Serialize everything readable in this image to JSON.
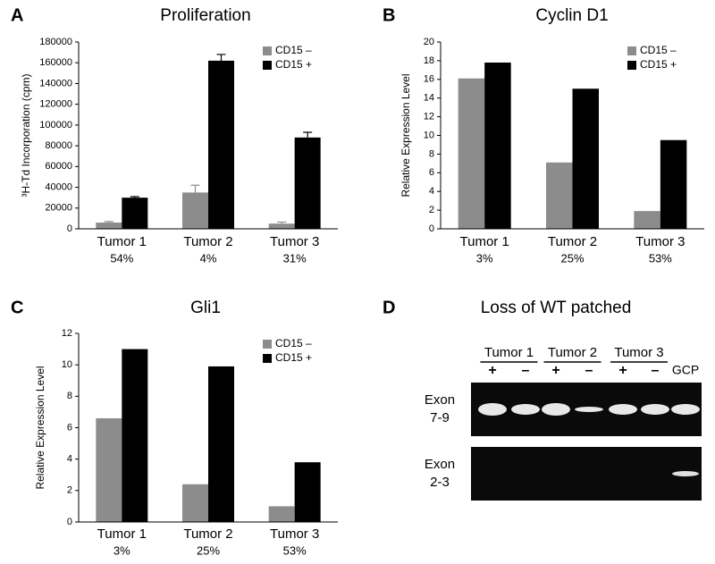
{
  "chart_data": [
    {
      "type": "bar",
      "label": "A",
      "title": "Proliferation",
      "y_label": "³H-Td Incorporation (cpm)",
      "categories": [
        "Tumor 1",
        "Tumor 2",
        "Tumor 3"
      ],
      "x_sublabels": [
        "54%",
        "4%",
        "31%"
      ],
      "series": [
        {
          "name": "CD15 –",
          "color": "#8c8c8c",
          "values": [
            6000,
            35000,
            5000
          ],
          "errors": [
            1000,
            7000,
            1500
          ]
        },
        {
          "name": "CD15 +",
          "color": "#000000",
          "values": [
            30000,
            162000,
            88000
          ],
          "errors": [
            1000,
            6000,
            5000
          ]
        }
      ],
      "ylim": [
        0,
        180000
      ],
      "yticks": [
        0,
        20000,
        40000,
        60000,
        80000,
        100000,
        120000,
        140000,
        160000,
        180000
      ],
      "legend": "upper right"
    },
    {
      "type": "bar",
      "label": "B",
      "title": "Cyclin D1",
      "y_label": "Relative Expression Level",
      "categories": [
        "Tumor 1",
        "Tumor 2",
        "Tumor 3"
      ],
      "x_sublabels": [
        "3%",
        "25%",
        "53%"
      ],
      "series": [
        {
          "name": "CD15 –",
          "color": "#8c8c8c",
          "values": [
            16.1,
            7.1,
            1.9
          ]
        },
        {
          "name": "CD15 +",
          "color": "#000000",
          "values": [
            17.8,
            15.0,
            9.5
          ]
        }
      ],
      "ylim": [
        0,
        20
      ],
      "yticks": [
        0,
        2,
        4,
        6,
        8,
        10,
        12,
        14,
        16,
        18,
        20
      ],
      "legend": "upper right"
    },
    {
      "type": "bar",
      "label": "C",
      "title": "Gli1",
      "y_label": "Relative Expression Level",
      "categories": [
        "Tumor 1",
        "Tumor 2",
        "Tumor 3"
      ],
      "x_sublabels": [
        "3%",
        "25%",
        "53%"
      ],
      "series": [
        {
          "name": "CD15 –",
          "color": "#8c8c8c",
          "values": [
            6.6,
            2.4,
            1.0
          ]
        },
        {
          "name": "CD15 +",
          "color": "#000000",
          "values": [
            11.0,
            9.9,
            3.8
          ]
        }
      ],
      "ylim": [
        0,
        12
      ],
      "yticks": [
        0,
        2,
        4,
        6,
        8,
        10,
        12
      ],
      "legend": "upper right"
    }
  ],
  "gel": {
    "label": "D",
    "title": "Loss of WT patched",
    "groups": [
      {
        "name": "Tumor 1",
        "lanes": [
          "+",
          "–"
        ]
      },
      {
        "name": "Tumor 2",
        "lanes": [
          "+",
          "–"
        ]
      },
      {
        "name": "Tumor 3",
        "lanes": [
          "+",
          "–"
        ]
      }
    ],
    "extra_lane": "GCP",
    "rows": [
      [
        "Exon",
        "7-9"
      ],
      [
        "Exon",
        "2-3"
      ]
    ]
  }
}
